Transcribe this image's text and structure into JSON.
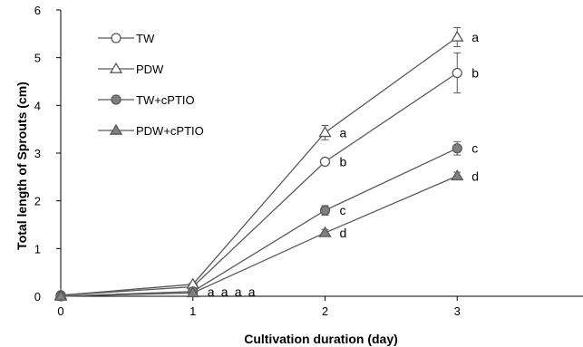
{
  "chart_data": {
    "type": "line",
    "xlabel": "Cultivation duration (day)",
    "ylabel": "Total length of Sprouts (cm)",
    "xlim": [
      0,
      4
    ],
    "ylim": [
      0,
      6
    ],
    "xticks": [
      "0",
      "1",
      "2",
      "3",
      "4"
    ],
    "yticks": [
      "0",
      "1",
      "2",
      "3",
      "4",
      "5",
      "6"
    ],
    "grid": false,
    "legend_position": "top-left",
    "x": [
      0,
      1,
      2,
      3
    ],
    "series": [
      {
        "name": "TW",
        "marker": "open-circle",
        "values": [
          0.02,
          0.2,
          2.82,
          4.68
        ],
        "errors": [
          0.0,
          0.03,
          0.05,
          0.42
        ],
        "letters": [
          "",
          "a",
          "b",
          "b"
        ]
      },
      {
        "name": "PDW",
        "marker": "open-triangle",
        "values": [
          0.02,
          0.25,
          3.43,
          5.43
        ],
        "errors": [
          0.0,
          0.03,
          0.15,
          0.2
        ],
        "letters": [
          "",
          "a",
          "a",
          "a"
        ]
      },
      {
        "name": "TW+cPTIO",
        "marker": "filled-circle",
        "values": [
          0.0,
          0.1,
          1.8,
          3.1
        ],
        "errors": [
          0.0,
          0.02,
          0.1,
          0.14
        ],
        "letters": [
          "",
          "a",
          "c",
          "c"
        ]
      },
      {
        "name": "PDW+cPTIO",
        "marker": "filled-triangle",
        "values": [
          0.0,
          0.07,
          1.33,
          2.52
        ],
        "errors": [
          0.0,
          0.02,
          0.07,
          0.08
        ],
        "letters": [
          "",
          "a",
          "d",
          "d"
        ]
      }
    ],
    "colors": {
      "line": "#595959",
      "marker_fill": "#7f7f7f",
      "axis": "#000000"
    }
  }
}
